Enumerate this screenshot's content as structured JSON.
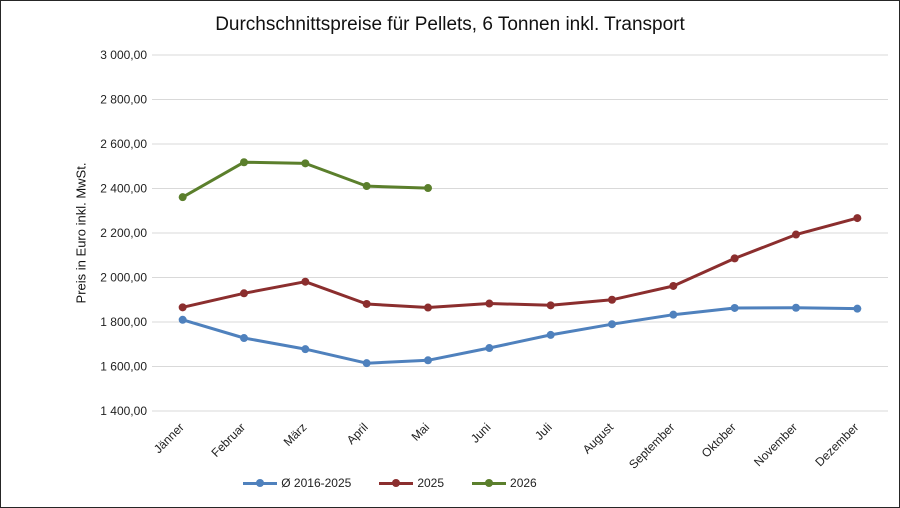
{
  "chart_data": {
    "type": "line",
    "title": "Durchschnittspreise für Pellets, 6 Tonnen inkl. Transport",
    "ylabel": "Preis in Euro inkl. MwSt.",
    "ylim": [
      1400,
      3000
    ],
    "yticks": [
      1400,
      1600,
      1800,
      2000,
      2200,
      2400,
      2600,
      2800,
      3000
    ],
    "ytick_labels": [
      "1 400,00",
      "1 600,00",
      "1 800,00",
      "2 000,00",
      "2 200,00",
      "2 400,00",
      "2 600,00",
      "2 800,00",
      "3 000,00"
    ],
    "grid": true,
    "legend_position": "bottom",
    "categories": [
      "Jänner",
      "Februar",
      "März",
      "April",
      "Mai",
      "Juni",
      "Juli",
      "August",
      "September",
      "Oktober",
      "November",
      "Dezember"
    ],
    "series": [
      {
        "name": "Ø 2016-2025",
        "color": "#4F81BD",
        "values": [
          1810,
          1728,
          1678,
          1615,
          1628,
          1683,
          1742,
          1790,
          1833,
          1863,
          1864,
          1860
        ]
      },
      {
        "name": "2025",
        "color": "#8B2E2E",
        "values": [
          1866,
          1929,
          1981,
          1881,
          1865,
          1883,
          1875,
          1900,
          1962,
          2086,
          2193,
          2267
        ]
      },
      {
        "name": "2026",
        "color": "#5B7F2C",
        "values": [
          2361,
          2518,
          2513,
          2411,
          2402,
          null,
          null,
          null,
          null,
          null,
          null,
          null
        ]
      }
    ]
  }
}
